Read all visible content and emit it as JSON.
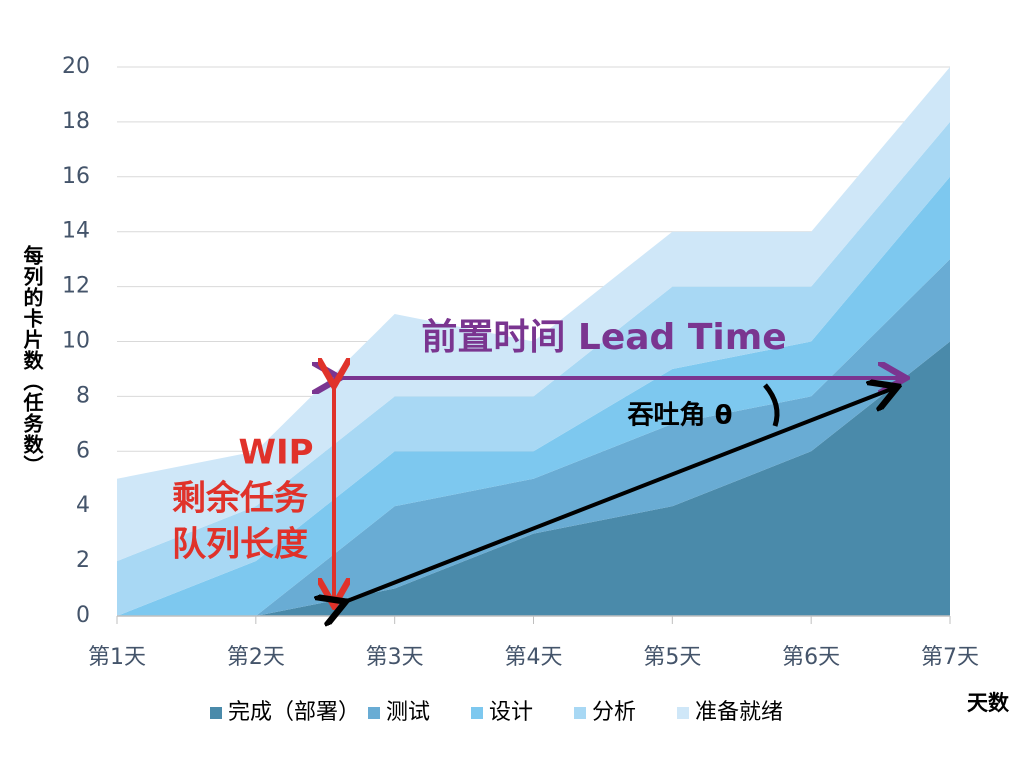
{
  "chart_data": {
    "type": "stacked_area",
    "y_label": "每列的卡片数（任务数）",
    "x_label": "天数",
    "categories": [
      "第1天",
      "第2天",
      "第3天",
      "第4天",
      "第5天",
      "第6天",
      "第7天"
    ],
    "series": [
      {
        "name": "完成（部署）",
        "color": "#4a8aaa",
        "values": [
          0,
          0,
          1,
          3,
          4,
          6,
          10
        ]
      },
      {
        "name": "测试",
        "color": "#69acd4",
        "values": [
          0,
          0,
          3,
          2,
          3,
          2,
          3
        ]
      },
      {
        "name": "设计",
        "color": "#7dc8ef",
        "values": [
          0,
          2,
          2,
          1,
          2,
          2,
          3
        ]
      },
      {
        "name": "分析",
        "color": "#a8d8f4",
        "values": [
          2,
          2,
          2,
          2,
          3,
          2,
          2
        ]
      },
      {
        "name": "准备就绪",
        "color": "#cfe7f8",
        "values": [
          3,
          2,
          3,
          2,
          2,
          2,
          2
        ]
      }
    ],
    "ylim": [
      0,
      20
    ],
    "yticks": [
      0,
      2,
      4,
      6,
      8,
      10,
      12,
      14,
      16,
      18,
      20
    ],
    "grid": true,
    "annotations": {
      "lead_time": "前置时间 Lead Time",
      "throughput": "吞吐角 θ",
      "wip": "WIP",
      "wip_line2": "剩余任务",
      "wip_line3": "队列长度"
    }
  }
}
